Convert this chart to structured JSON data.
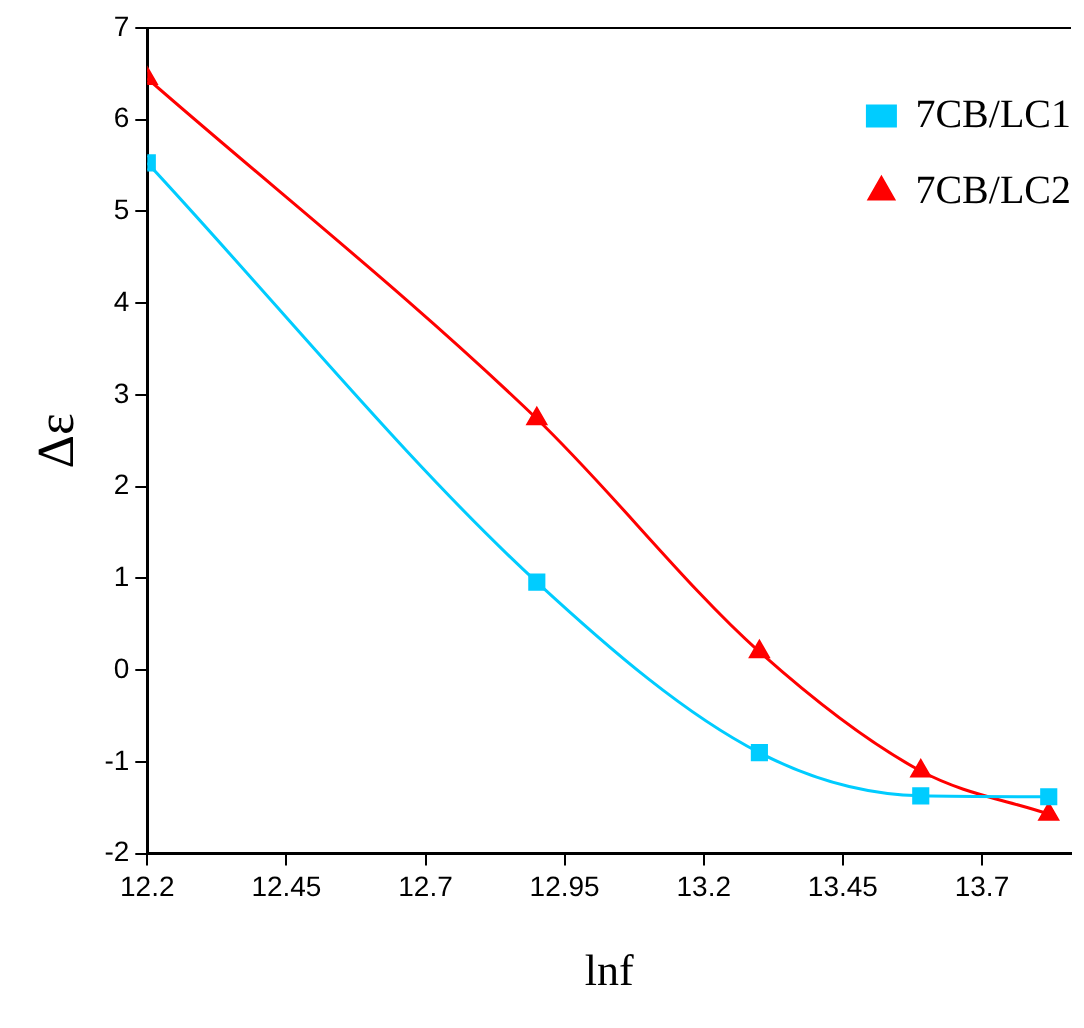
{
  "chart_data": {
    "type": "line",
    "xlabel": "lnf",
    "ylabel": "Δε",
    "x": [
      12.2,
      12.9,
      13.3,
      13.59,
      13.82
    ],
    "series": [
      {
        "name": "7CB/LC1",
        "color": "#00ccff",
        "values": [
          5.53,
          0.96,
          -0.9,
          -1.37,
          -1.38
        ],
        "marker": "square"
      },
      {
        "name": "7CB/LC2",
        "color": "#ff0000",
        "values": [
          6.45,
          2.74,
          0.2,
          -1.1,
          -1.57
        ],
        "marker": "triangle"
      }
    ],
    "xlim": [
      12.2,
      13.86
    ],
    "xticks": [
      12.2,
      12.45,
      12.7,
      12.95,
      13.2,
      13.45,
      13.7
    ],
    "ylim": [
      -2,
      7
    ],
    "yticks": [
      -2,
      -1,
      0,
      1,
      2,
      3,
      4,
      5,
      6,
      7
    ],
    "grid": false,
    "legend": "top right",
    "line_style": "solid"
  }
}
